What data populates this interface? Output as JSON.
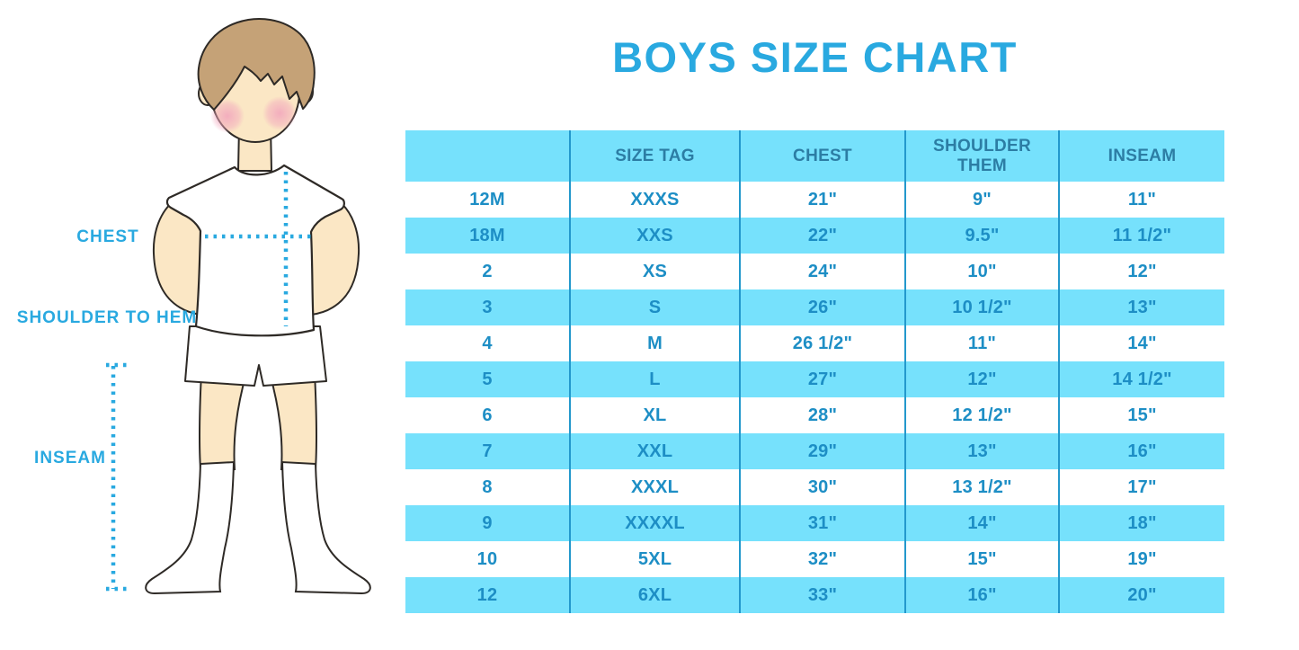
{
  "title": "BOYS SIZE CHART",
  "diagram_labels": {
    "chest": "CHEST",
    "shoulder_to_hem": "SHOULDER TO HEM",
    "inseam": "INSEAM"
  },
  "chart_data": {
    "type": "table",
    "title": "BOYS SIZE CHART",
    "columns": [
      "",
      "SIZE TAG",
      "CHEST",
      "SHOULDER THEM",
      "INSEAM"
    ],
    "rows": [
      [
        "12M",
        "XXXS",
        "21\"",
        "9\"",
        "11\""
      ],
      [
        "18M",
        "XXS",
        "22\"",
        "9.5\"",
        "11 1/2\""
      ],
      [
        "2",
        "XS",
        "24\"",
        "10\"",
        "12\""
      ],
      [
        "3",
        "S",
        "26\"",
        "10 1/2\"",
        "13\""
      ],
      [
        "4",
        "M",
        "26 1/2\"",
        "11\"",
        "14\""
      ],
      [
        "5",
        "L",
        "27\"",
        "12\"",
        "14 1/2\""
      ],
      [
        "6",
        "XL",
        "28\"",
        "12 1/2\"",
        "15\""
      ],
      [
        "7",
        "XXL",
        "29\"",
        "13\"",
        "16\""
      ],
      [
        "8",
        "XXXL",
        "30\"",
        "13 1/2\"",
        "17\""
      ],
      [
        "9",
        "XXXXL",
        "31\"",
        "14\"",
        "18\""
      ],
      [
        "10",
        "5XL",
        "32\"",
        "15\"",
        "19\""
      ],
      [
        "12",
        "6XL",
        "33\"",
        "16\"",
        "20\""
      ]
    ],
    "layout_hints": {
      "header_background": "#76E1FC",
      "alternating_row_background": [
        "#FFFFFF",
        "#76E1FC"
      ],
      "grid": "vertical-dividers-only"
    }
  },
  "colors": {
    "accent_blue": "#29A9E0",
    "cell_text_blue": "#1D8EC5",
    "header_text_blue": "#2C7DA4",
    "table_fill_blue": "#76E1FC",
    "divider_blue": "#2398CC",
    "skin": "#FBE7C5",
    "hair": "#C5A277",
    "cheek_pink": "#F2A7BD"
  }
}
